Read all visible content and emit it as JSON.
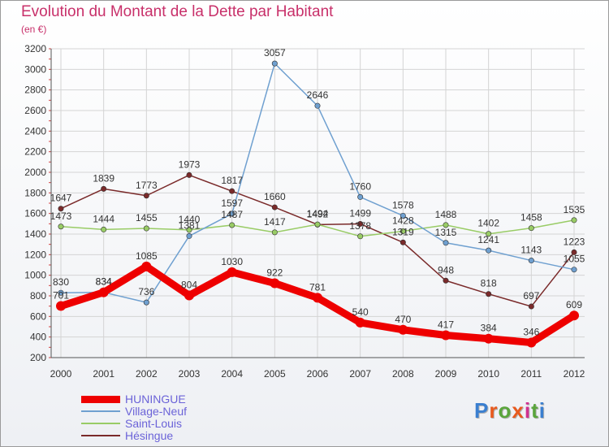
{
  "title": "Evolution du Montant de la Dette par Habitant",
  "subtitle": "(en €)",
  "logo": {
    "text": "Proxiti",
    "colors": [
      "#3a7fd0",
      "#e85a1e",
      "#5aa53c",
      "#e85a1e",
      "#d03090",
      "#5aa53c",
      "#3a7fd0"
    ]
  },
  "chart_data": {
    "type": "line",
    "x": [
      "2000",
      "2001",
      "2002",
      "2003",
      "2004",
      "2005",
      "2006",
      "2007",
      "2008",
      "2009",
      "2010",
      "2011",
      "2012"
    ],
    "ylim": [
      200,
      3200
    ],
    "yticks": [
      200,
      400,
      600,
      800,
      1000,
      1200,
      1400,
      1600,
      1800,
      2000,
      2200,
      2400,
      2600,
      2800,
      3000,
      3200
    ],
    "grid": true,
    "legend_position": "bottom-left",
    "series": [
      {
        "name": "HUNINGUE",
        "color": "#ee0000",
        "values": [
          701,
          834,
          1085,
          804,
          1030,
          922,
          781,
          540,
          470,
          417,
          384,
          346,
          609
        ]
      },
      {
        "name": "Village-Neuf",
        "color": "#6fa0d0",
        "values": [
          830,
          834,
          736,
          1381,
          1597,
          3057,
          2646,
          1760,
          1578,
          1315,
          1241,
          1143,
          1055
        ]
      },
      {
        "name": "Saint-Louis",
        "color": "#99cc66",
        "values": [
          1473,
          1444,
          1455,
          1440,
          1487,
          1417,
          1494,
          1378,
          1428,
          1488,
          1402,
          1458,
          1535
        ]
      },
      {
        "name": "Hésingue",
        "color": "#7a2a2a",
        "values": [
          1647,
          1839,
          1773,
          1973,
          1817,
          1660,
          1492,
          1499,
          1319,
          948,
          818,
          697,
          1223
        ]
      }
    ]
  }
}
